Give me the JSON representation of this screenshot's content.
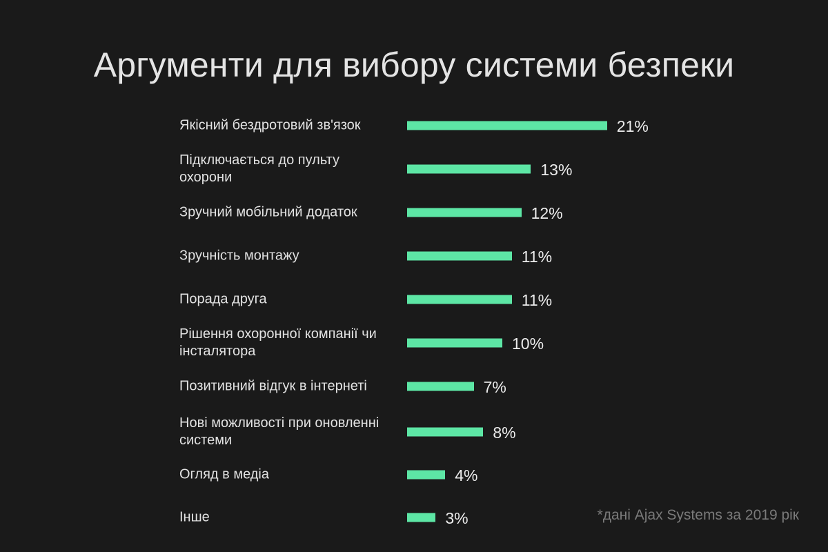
{
  "title": "Аргументи для вибору системи безпеки",
  "footnote": "*дані Ajax Systems за 2019 рік",
  "colors": {
    "background": "#1a1a1a",
    "bar": "#5de6a5",
    "text": "#e6e6e6",
    "footnote": "#7a7a7a"
  },
  "chart_data": {
    "type": "bar",
    "orientation": "horizontal",
    "title": "Аргументи для вибору системи безпеки",
    "categories": [
      "Якісний бездротовий зв'язок",
      "Підключається до пульту охорони",
      "Зручний мобільний додаток",
      "Зручність монтажу",
      "Порада друга",
      "Рішення охоронної компанії чи інсталятора",
      "Позитивний відгук в інтернеті",
      "Нові можливості при оновленні системи",
      "Огляд в медіа",
      "Інше"
    ],
    "values": [
      21,
      13,
      12,
      11,
      11,
      10,
      7,
      8,
      4,
      3
    ],
    "value_labels": [
      "21%",
      "13%",
      "12%",
      "11%",
      "11%",
      "10%",
      "7%",
      "8%",
      "4%",
      "3%"
    ],
    "unit": "%",
    "xlabel": "",
    "ylabel": "",
    "grid": false,
    "legend": "none"
  }
}
